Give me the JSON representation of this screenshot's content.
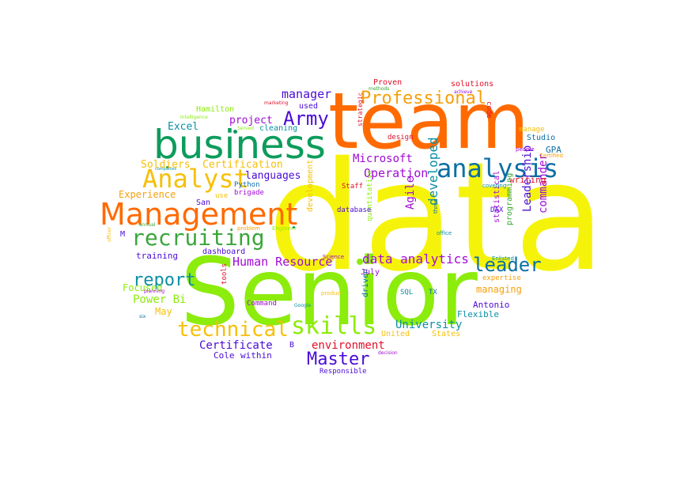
{
  "words": [
    {
      "text": "data",
      "color": "#f6f30a"
    },
    {
      "text": "Senior",
      "color": "#8cec0c"
    },
    {
      "text": "team",
      "color": "#ff6a00"
    },
    {
      "text": "business",
      "color": "#0c9c5c"
    },
    {
      "text": "Management",
      "color": "#ff6a00"
    },
    {
      "text": "analysis",
      "color": "#0b6fa4"
    },
    {
      "text": "Analyst",
      "color": "#f6c00a"
    },
    {
      "text": "recruiting",
      "color": "#3aa63a"
    },
    {
      "text": "skills",
      "color": "#8cec0c"
    },
    {
      "text": "technical",
      "color": "#f6c00a"
    },
    {
      "text": "Professional",
      "color": "#f6a00a"
    },
    {
      "text": "Army",
      "color": "#4a0bd6"
    },
    {
      "text": "report",
      "color": "#0b8fa4"
    },
    {
      "text": "Master",
      "color": "#4a0bd6"
    },
    {
      "text": "leader",
      "color": "#0b6fa4"
    },
    {
      "text": "data analytics",
      "color": "#a10bd6"
    },
    {
      "text": "Human Resource",
      "color": "#a10bd6"
    },
    {
      "text": "Operation",
      "color": "#a10bd6"
    },
    {
      "text": "manager",
      "color": "#4a0bd6"
    },
    {
      "text": "Agile",
      "color": "#a10bd6"
    },
    {
      "text": "developed",
      "color": "#0b8fa4"
    },
    {
      "text": "Leadership",
      "color": "#4a0bd6"
    },
    {
      "text": "commander",
      "color": "#a10bd6"
    },
    {
      "text": "Microsoft",
      "color": "#a10bd6"
    },
    {
      "text": "University",
      "color": "#0b8fa4"
    },
    {
      "text": "Certificate",
      "color": "#4a0bd6"
    },
    {
      "text": "environment",
      "color": "#e0102a"
    },
    {
      "text": "Power Bi",
      "color": "#8cec0c"
    },
    {
      "text": "Focused",
      "color": "#8cec0c"
    },
    {
      "text": "Soldiers",
      "color": "#f6c00a"
    },
    {
      "text": "Certification",
      "color": "#f6c00a"
    },
    {
      "text": "languages",
      "color": "#4a0bd6"
    },
    {
      "text": "project",
      "color": "#a10bd6"
    },
    {
      "text": "Excel",
      "color": "#0b8fa4"
    },
    {
      "text": "Experience",
      "color": "#f6a00a"
    },
    {
      "text": "training",
      "color": "#4a0bd6"
    },
    {
      "text": "managing",
      "color": "#f6a00a"
    },
    {
      "text": "Flexible",
      "color": "#0b8fa4"
    },
    {
      "text": "Antonio",
      "color": "#4a0bd6"
    },
    {
      "text": "May",
      "color": "#f6c00a"
    },
    {
      "text": "Cole",
      "color": "#4a0bd6"
    },
    {
      "text": "within",
      "color": "#4a0bd6"
    },
    {
      "text": "Responsible",
      "color": "#4a0bd6"
    },
    {
      "text": "States",
      "color": "#f6c00a"
    },
    {
      "text": "United",
      "color": "#f6c00a"
    },
    {
      "text": "writing",
      "color": "#e0102a"
    },
    {
      "text": "GPA",
      "color": "#0b6fa4"
    },
    {
      "text": "Studio",
      "color": "#0b6fa4"
    },
    {
      "text": "programming",
      "color": "#3aa63a"
    },
    {
      "text": "statistical",
      "color": "#a10bd6"
    },
    {
      "text": "expertise",
      "color": "#f6a00a"
    },
    {
      "text": "Hamilton",
      "color": "#8cec0c"
    },
    {
      "text": "cleaning",
      "color": "#0b8fa4"
    },
    {
      "text": "used",
      "color": "#4a0bd6"
    },
    {
      "text": "Proven",
      "color": "#e0102a"
    },
    {
      "text": "solutions",
      "color": "#e0102a"
    },
    {
      "text": "code",
      "color": "#e0102a"
    },
    {
      "text": "design",
      "color": "#e0102a"
    },
    {
      "text": "manage",
      "color": "#f6c00a"
    },
    {
      "text": "strategic",
      "color": "#e0102a"
    },
    {
      "text": "people",
      "color": "#a10bd6"
    },
    {
      "text": "Certified",
      "color": "#f6a00a"
    },
    {
      "text": "Staff",
      "color": "#e0102a"
    },
    {
      "text": "covering",
      "color": "#0b8fa4"
    },
    {
      "text": "DAX",
      "color": "#4a0bd6"
    },
    {
      "text": "office",
      "color": "#0b8fa4"
    },
    {
      "text": "three",
      "color": "#0b6fa4"
    },
    {
      "text": "quantitative",
      "color": "#8cec0c"
    },
    {
      "text": "development",
      "color": "#f6c00a"
    },
    {
      "text": "database",
      "color": "#4a0bd6"
    },
    {
      "text": "brigade",
      "color": "#a10bd6"
    },
    {
      "text": "Python",
      "color": "#0b6fa4"
    },
    {
      "text": "use",
      "color": "#f6c00a"
    },
    {
      "text": "San",
      "color": "#4a0bd6"
    },
    {
      "text": "dashboard",
      "color": "#4a0bd6"
    },
    {
      "text": "M",
      "color": "#4a0bd6"
    },
    {
      "text": "July",
      "color": "#a10bd6"
    },
    {
      "text": "tools",
      "color": "#e0102a"
    },
    {
      "text": "Command",
      "color": "#a10bd6"
    },
    {
      "text": "driven",
      "color": "#0b6fa4"
    },
    {
      "text": "SQL",
      "color": "#0b8fa4"
    },
    {
      "text": "TX",
      "color": "#0b6fa4"
    },
    {
      "text": "B",
      "color": "#4a0bd6"
    },
    {
      "text": "Enlisted",
      "color": "#0b8fa4"
    },
    {
      "text": "Science",
      "color": "#a10bd6"
    },
    {
      "text": "Engineer",
      "color": "#8cec0c"
    },
    {
      "text": "problem",
      "color": "#f6a00a"
    },
    {
      "text": "product",
      "color": "#f6c00a"
    },
    {
      "text": "Google",
      "color": "#0b8fa4"
    },
    {
      "text": "planning",
      "color": "#a10bd6"
    },
    {
      "text": "six",
      "color": "#0b6fa4"
    },
    {
      "text": "annual",
      "color": "#3aa63a"
    },
    {
      "text": "officer",
      "color": "#f6c00a"
    },
    {
      "text": "decision",
      "color": "#a10bd6"
    },
    {
      "text": "intelligence",
      "color": "#8cec0c"
    },
    {
      "text": "marketing",
      "color": "#e0102a"
    },
    {
      "text": "Served",
      "color": "#8cec0c"
    },
    {
      "text": "methods",
      "color": "#3aa63a"
    },
    {
      "text": "achieve",
      "color": "#a10bd6"
    },
    {
      "text": "companies",
      "color": "#0b8fa4"
    }
  ],
  "dots": [
    {
      "color": "#0c9c5c"
    },
    {
      "color": "#8cec0c"
    },
    {
      "color": "#0c9c5c"
    },
    {
      "color": "#3aa63a"
    }
  ]
}
